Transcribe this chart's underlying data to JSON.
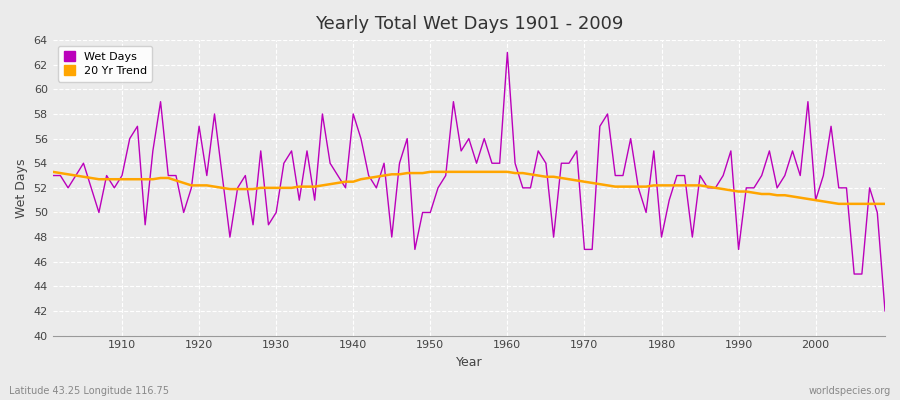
{
  "title": "Yearly Total Wet Days 1901 - 2009",
  "xlabel": "Year",
  "ylabel": "Wet Days",
  "bottom_left_label": "Latitude 43.25 Longitude 116.75",
  "bottom_right_label": "worldspecies.org",
  "legend_wet_days": "Wet Days",
  "legend_trend": "20 Yr Trend",
  "wet_days_color": "#BB00BB",
  "trend_color": "#FFA500",
  "background_color": "#EBEBEB",
  "plot_bg_color": "#EBEBEB",
  "ylim": [
    40,
    64
  ],
  "yticks": [
    40,
    42,
    44,
    46,
    48,
    50,
    52,
    54,
    56,
    58,
    60,
    62,
    64
  ],
  "xlim": [
    1901,
    2009
  ],
  "years": [
    1901,
    1902,
    1903,
    1904,
    1905,
    1906,
    1907,
    1908,
    1909,
    1910,
    1911,
    1912,
    1913,
    1914,
    1915,
    1916,
    1917,
    1918,
    1919,
    1920,
    1921,
    1922,
    1923,
    1924,
    1925,
    1926,
    1927,
    1928,
    1929,
    1930,
    1931,
    1932,
    1933,
    1934,
    1935,
    1936,
    1937,
    1938,
    1939,
    1940,
    1941,
    1942,
    1943,
    1944,
    1945,
    1946,
    1947,
    1948,
    1949,
    1950,
    1951,
    1952,
    1953,
    1954,
    1955,
    1956,
    1957,
    1958,
    1959,
    1960,
    1961,
    1962,
    1963,
    1964,
    1965,
    1966,
    1967,
    1968,
    1969,
    1970,
    1971,
    1972,
    1973,
    1974,
    1975,
    1976,
    1977,
    1978,
    1979,
    1980,
    1981,
    1982,
    1983,
    1984,
    1985,
    1986,
    1987,
    1988,
    1989,
    1990,
    1991,
    1992,
    1993,
    1994,
    1995,
    1996,
    1997,
    1998,
    1999,
    2000,
    2001,
    2002,
    2003,
    2004,
    2005,
    2006,
    2007,
    2008,
    2009
  ],
  "wet_days": [
    53,
    53,
    52,
    53,
    54,
    52,
    50,
    53,
    52,
    53,
    56,
    57,
    49,
    55,
    59,
    53,
    53,
    50,
    52,
    57,
    53,
    58,
    53,
    48,
    52,
    53,
    49,
    55,
    49,
    50,
    54,
    55,
    51,
    55,
    51,
    58,
    54,
    53,
    52,
    58,
    56,
    53,
    52,
    54,
    48,
    54,
    56,
    47,
    50,
    50,
    52,
    53,
    59,
    55,
    56,
    54,
    56,
    54,
    54,
    63,
    54,
    52,
    52,
    55,
    54,
    48,
    54,
    54,
    55,
    47,
    47,
    57,
    58,
    53,
    53,
    56,
    52,
    50,
    55,
    48,
    51,
    53,
    53,
    48,
    53,
    52,
    52,
    53,
    55,
    47,
    52,
    52,
    53,
    55,
    52,
    53,
    55,
    53,
    59,
    51,
    53,
    57,
    52,
    52,
    45,
    45,
    52,
    50,
    42
  ],
  "trend_values": [
    53.3,
    53.2,
    53.1,
    53.0,
    52.9,
    52.8,
    52.7,
    52.7,
    52.7,
    52.7,
    52.7,
    52.7,
    52.7,
    52.7,
    52.8,
    52.8,
    52.6,
    52.4,
    52.2,
    52.2,
    52.2,
    52.1,
    52.0,
    51.9,
    51.9,
    51.9,
    51.9,
    52.0,
    52.0,
    52.0,
    52.0,
    52.0,
    52.1,
    52.1,
    52.1,
    52.2,
    52.3,
    52.4,
    52.5,
    52.5,
    52.7,
    52.8,
    52.9,
    53.0,
    53.1,
    53.1,
    53.2,
    53.2,
    53.2,
    53.3,
    53.3,
    53.3,
    53.3,
    53.3,
    53.3,
    53.3,
    53.3,
    53.3,
    53.3,
    53.3,
    53.2,
    53.2,
    53.1,
    53.0,
    52.9,
    52.9,
    52.8,
    52.7,
    52.6,
    52.5,
    52.4,
    52.3,
    52.2,
    52.1,
    52.1,
    52.1,
    52.1,
    52.1,
    52.2,
    52.2,
    52.2,
    52.2,
    52.2,
    52.2,
    52.2,
    52.1,
    52.0,
    51.9,
    51.8,
    51.7,
    51.7,
    51.6,
    51.5,
    51.5,
    51.4,
    51.4,
    51.3,
    51.2,
    51.1,
    51.0,
    50.9,
    50.8,
    50.7,
    50.7,
    50.7,
    50.7,
    50.7,
    50.7,
    50.7
  ]
}
